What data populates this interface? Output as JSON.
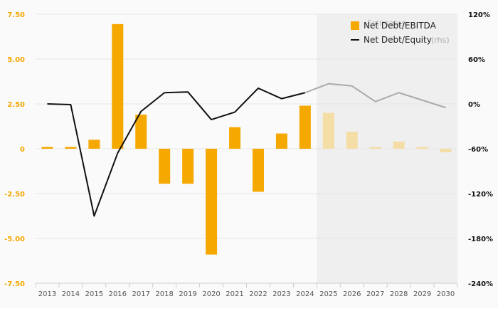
{
  "chart_data": {
    "type": "bar",
    "categories": [
      "2013",
      "2014",
      "2015",
      "2016",
      "2017",
      "2018",
      "2019",
      "2020",
      "2021",
      "2022",
      "2023",
      "2024",
      "2025",
      "2026",
      "2027",
      "2028",
      "2029",
      "2030"
    ],
    "estimate_start_index": 12,
    "estimates_label": "Estimates",
    "series": [
      {
        "name": "Net Debt/EBITDA",
        "axis": "left",
        "chart_type": "bar",
        "color": "#f5a800",
        "estimate_color": "#f5dda6",
        "values": [
          0.1,
          0.1,
          0.5,
          6.95,
          1.9,
          -1.95,
          -1.95,
          -5.9,
          1.2,
          -2.4,
          0.85,
          2.4,
          2.0,
          0.95,
          0.1,
          0.4,
          0.1,
          -0.2
        ]
      },
      {
        "name": "Net Debt/Equity",
        "axis": "right",
        "chart_type": "line",
        "color": "#111111",
        "estimate_color": "#aaaaaa",
        "rhs_label": "(rhs)",
        "values": [
          0,
          -1,
          -150,
          -66,
          -10,
          15,
          16,
          -21,
          -11,
          21,
          7,
          15,
          27,
          24,
          3,
          15,
          5,
          -5
        ]
      }
    ],
    "yleft": {
      "min": -7.5,
      "max": 7.5,
      "ticks": [
        "7.50",
        "5.00",
        "2.50",
        "0",
        "-2.50",
        "-5.00",
        "-7.50"
      ]
    },
    "yright": {
      "min": -240,
      "max": 120,
      "ticks": [
        "120%",
        "60%",
        "0%",
        "-60%",
        "-120%",
        "-180%",
        "-240%"
      ]
    },
    "grid": true,
    "legend_position": "top-right"
  }
}
